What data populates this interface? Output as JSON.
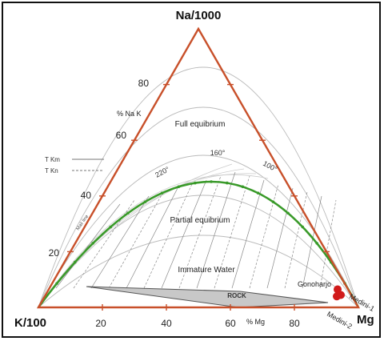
{
  "chart_data": {
    "type": "ternary",
    "title": "",
    "vertices": {
      "top": "Na/1000",
      "left": "K/100",
      "right": "Mg"
    },
    "left_edge_label": "% Na K",
    "bottom_edge_label": "% Mg",
    "left_ticks": [
      "80",
      "60",
      "40",
      "20"
    ],
    "bottom_ticks": [
      "20",
      "40",
      "60",
      "80"
    ],
    "legend": [
      {
        "label": "T Km",
        "style": "solid"
      },
      {
        "label": "T Kn",
        "style": "dashed"
      }
    ],
    "regions": [
      "Full equibrium",
      "Partial equibrium",
      "Immature Water",
      "ROCK"
    ],
    "temperature_labels": [
      "160°",
      "100°",
      "220°",
      "Mail line"
    ],
    "samples": [
      {
        "name": "Gonoharjo",
        "mg_pct": 92,
        "na_pct": 3
      },
      {
        "name": "Medini-1",
        "mg_pct": 94,
        "na_pct": 1
      },
      {
        "name": "Medini-2",
        "mg_pct": 93,
        "na_pct": 0.5
      }
    ],
    "colors": {
      "triangle": "#c8502a",
      "equilibrium_curve": "#3a9a2a",
      "samples": "#d11a1a",
      "rock": "#c8c8c8"
    }
  }
}
